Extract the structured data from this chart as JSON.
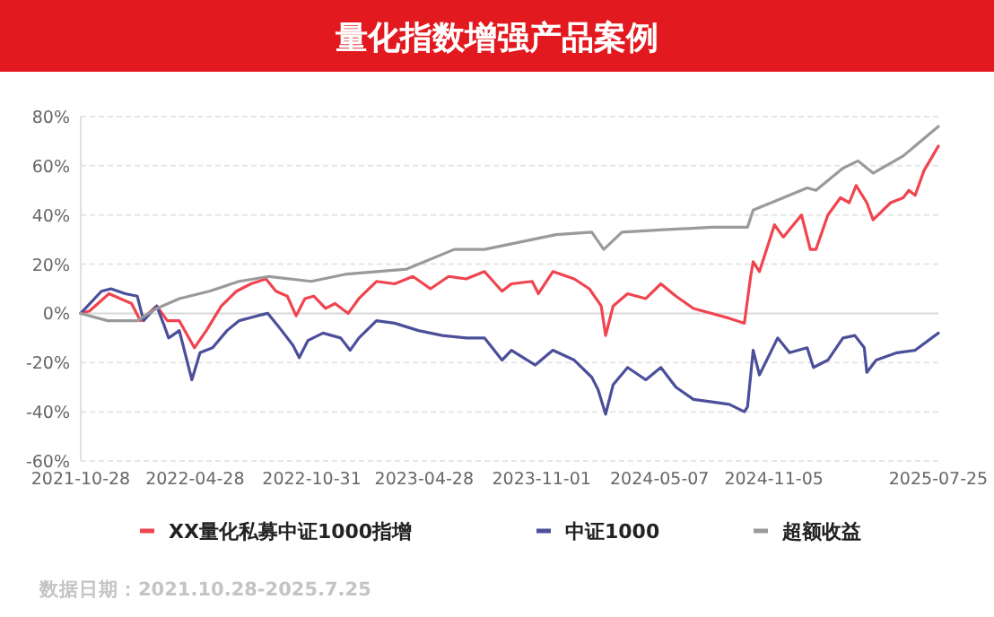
{
  "chart_data": {
    "type": "line",
    "title": "量化指数增强产品案例",
    "x": [
      "2021-10-28",
      "2021-11-11",
      "2021-12-12",
      "2022-01-17",
      "2022-01-31",
      "2022-02-26",
      "2022-03-15",
      "2022-04-03",
      "2022-04-27",
      "2022-05-16",
      "2022-06-09",
      "2022-07-03",
      "2022-07-26",
      "2022-08-19",
      "2022-09-04",
      "2022-09-22",
      "2022-10-06",
      "2022-10-20",
      "2022-11-03",
      "2022-11-22",
      "2022-12-07",
      "2022-12-28",
      "2023-01-14",
      "2023-02-11",
      "2023-03-12",
      "2023-04-10",
      "2023-05-08",
      "2023-06-06",
      "2023-07-04",
      "2023-08-02",
      "2023-08-30",
      "2023-09-14",
      "2023-10-17",
      "2023-10-27",
      "2023-11-19",
      "2023-12-23",
      "2024-01-16",
      "2024-02-04",
      "2024-02-11",
      "2024-02-23",
      "2024-03-17",
      "2024-04-15",
      "2024-05-09",
      "2024-06-02",
      "2024-06-30",
      "2024-07-29",
      "2024-08-26",
      "2024-09-19",
      "2024-09-29",
      "2024-10-03",
      "2024-10-13",
      "2024-11-06",
      "2024-11-20",
      "2024-12-19",
      "2025-01-02",
      "2025-01-11",
      "2025-01-30",
      "2025-02-19",
      "2025-03-05",
      "2025-03-16",
      "2025-04-02",
      "2025-04-12",
      "2025-05-10",
      "2025-05-30",
      "2025-06-08",
      "2025-06-18",
      "2025-07-02",
      "2025-07-25"
    ],
    "series": [
      {
        "name": "XX量化私募中证1000指增",
        "color": "#f0444f",
        "values": [
          0,
          1,
          8,
          4,
          -3,
          3,
          -3,
          -3,
          -14,
          -7,
          3,
          9,
          12,
          14,
          9,
          7,
          -1,
          6,
          7,
          2,
          4,
          0,
          6,
          13,
          12,
          15,
          10,
          15,
          14,
          17,
          9,
          12,
          13,
          8,
          17,
          14,
          10,
          3,
          -9,
          3,
          8,
          6,
          12,
          7,
          2,
          0,
          -2,
          -4,
          15,
          21,
          17,
          36,
          31,
          40,
          26,
          26,
          40,
          47,
          45,
          52,
          45,
          38,
          45,
          47,
          50,
          48,
          58,
          68
        ]
      },
      {
        "name": "中证1000",
        "color": "#4b4f9a",
        "x": [
          "2021-10-28",
          "2021-11-30",
          "2021-12-15",
          "2022-01-07",
          "2022-01-26",
          "2022-02-05",
          "2022-02-26",
          "2022-03-10",
          "2022-03-17",
          "2022-04-03",
          "2022-04-23",
          "2022-05-06",
          "2022-05-26",
          "2022-06-18",
          "2022-07-07",
          "2022-08-05",
          "2022-08-22",
          "2022-09-07",
          "2022-10-01",
          "2022-10-11",
          "2022-10-25",
          "2022-11-18",
          "2022-12-16",
          "2022-12-31",
          "2023-01-14",
          "2023-02-11",
          "2023-03-12",
          "2023-04-19",
          "2023-05-27",
          "2023-07-04",
          "2023-08-02",
          "2023-08-30",
          "2023-09-14",
          "2023-10-22",
          "2023-11-19",
          "2023-12-23",
          "2024-01-20",
          "2024-01-30",
          "2024-02-11",
          "2024-02-23",
          "2024-03-17",
          "2024-04-15",
          "2024-05-09",
          "2024-06-02",
          "2024-06-30",
          "2024-07-29",
          "2024-08-26",
          "2024-09-19",
          "2024-09-24",
          "2024-10-03",
          "2024-10-13",
          "2024-11-11",
          "2024-11-30",
          "2024-12-28",
          "2025-01-07",
          "2025-01-30",
          "2025-02-23",
          "2025-03-14",
          "2025-03-29",
          "2025-04-02",
          "2025-04-17",
          "2025-05-20",
          "2025-06-18",
          "2025-07-25"
        ],
        "values": [
          0,
          9,
          10,
          8,
          7,
          -3,
          3,
          -5,
          -10,
          -7,
          -27,
          -16,
          -14,
          -7,
          -3,
          -1,
          0,
          -5,
          -13,
          -18,
          -11,
          -8,
          -10,
          -15,
          -10,
          -3,
          -4,
          -7,
          -9,
          -10,
          -10,
          -19,
          -15,
          -21,
          -15,
          -19,
          -26,
          -31,
          -41,
          -29,
          -22,
          -27,
          -22,
          -30,
          -35,
          -36,
          -37,
          -40,
          -38,
          -15,
          -25,
          -10,
          -16,
          -14,
          -22,
          -19,
          -10,
          -9,
          -14,
          -24,
          -19,
          -16,
          -15,
          -8
        ]
      },
      {
        "name": "超额收益",
        "color": "#9a9a9a",
        "x": [
          "2021-10-28",
          "2021-12-10",
          "2022-01-26",
          "2022-02-26",
          "2022-04-03",
          "2022-05-21",
          "2022-07-07",
          "2022-08-24",
          "2022-10-30",
          "2022-12-26",
          "2023-03-31",
          "2023-06-15",
          "2023-08-02",
          "2023-09-28",
          "2023-11-24",
          "2024-01-20",
          "2024-02-08",
          "2024-03-08",
          "2024-05-14",
          "2024-07-29",
          "2024-09-24",
          "2024-10-03",
          "2024-11-20",
          "2024-12-28",
          "2025-01-11",
          "2025-02-23",
          "2025-03-19",
          "2025-04-12",
          "2025-05-30",
          "2025-07-25"
        ],
        "values": [
          0,
          -3,
          -3,
          2,
          6,
          9,
          13,
          15,
          13,
          16,
          18,
          26,
          26,
          29,
          32,
          33,
          26,
          33,
          34,
          35,
          35,
          42,
          47,
          51,
          50,
          59,
          62,
          57,
          64,
          76
        ]
      }
    ],
    "xlim": [
      "2021-10-28",
      "2025-07-25"
    ],
    "xticks": [
      {
        "value": "2021-10-28",
        "label": "2021-10-28"
      },
      {
        "value": "2022-04-28",
        "label": "2022-04-28"
      },
      {
        "value": "2022-10-31",
        "label": "2022-10-31"
      },
      {
        "value": "2023-04-28",
        "label": "2023-04-28"
      },
      {
        "value": "2023-11-01",
        "label": "2023-11-01"
      },
      {
        "value": "2024-05-07",
        "label": "2024-05-07"
      },
      {
        "value": "2024-11-05",
        "label": "2024-11-05"
      },
      {
        "value": "2025-07-25",
        "label": "2025-07-25"
      }
    ],
    "ylim": [
      -60,
      80
    ],
    "yticks": [
      {
        "value": -60,
        "label": "-60%"
      },
      {
        "value": -40,
        "label": "-40%"
      },
      {
        "value": -20,
        "label": "-20%"
      },
      {
        "value": 0,
        "label": "0%"
      },
      {
        "value": 20,
        "label": "20%"
      },
      {
        "value": 40,
        "label": "40%"
      },
      {
        "value": 60,
        "label": "60%"
      },
      {
        "value": 80,
        "label": "80%"
      }
    ],
    "grid": "y",
    "legend": "bottom",
    "marker": "none",
    "line_style": "solid",
    "annotations": [
      "数据日期：2021.10.28-2025.7.25"
    ]
  }
}
